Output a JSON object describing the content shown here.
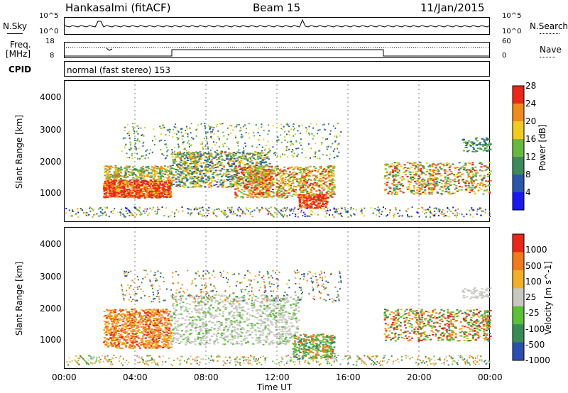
{
  "header": {
    "title": "Hankasalmi (fitACF)",
    "beam": "Beam 15",
    "date": "11/Jan/2015"
  },
  "noise_panel": {
    "left_label": "N.Sky",
    "right_label": "N.Search",
    "tick_top": "10^5",
    "tick_bottom": "10^0"
  },
  "freq_panel": {
    "left_label_1": "Freq.",
    "left_label_2": "[MHz]",
    "left_tick_top": "18",
    "left_tick_bottom": "8",
    "right_label": "Nave",
    "right_tick_top": "60",
    "right_tick_bottom": "0"
  },
  "cpid_panel": {
    "label": "CPID",
    "text": "normal (fast stereo) 153"
  },
  "chart_data": [
    {
      "type": "heatmap",
      "ylabel": "Slant Range [km]",
      "yticks": [
        "1000",
        "2000",
        "3000",
        "4000"
      ],
      "ylim": [
        200,
        4600
      ],
      "xlim_hours": [
        0,
        24
      ],
      "colorbar_label": "Power [dB]",
      "colorbar_ticks": [
        "4",
        "8",
        "12",
        "16",
        "20",
        "24",
        "28"
      ],
      "colorbar_colors": [
        "#1a1aee",
        "#2a57a8",
        "#3f8a5a",
        "#6ab844",
        "#f0cc22",
        "#f08a1c",
        "#e8281a"
      ]
    },
    {
      "type": "heatmap",
      "ylabel": "Slant Range [km]",
      "yticks": [
        "1000",
        "2000",
        "3000",
        "4000"
      ],
      "ylim": [
        200,
        4600
      ],
      "xlim_hours": [
        0,
        24
      ],
      "colorbar_label": "Velocity [m s^-1]",
      "colorbar_ticks": [
        "1000",
        "500",
        "100",
        "25",
        "-25",
        "-100",
        "-500",
        "-1000"
      ],
      "colorbar_colors": [
        "#2a4fb0",
        "#3a8a58",
        "#5cbf3a",
        "#c8c8c0",
        "#f0b02a",
        "#f07a1c",
        "#e8281a"
      ]
    }
  ],
  "xaxis": {
    "label": "Time UT",
    "ticks": [
      "00:00",
      "04:00",
      "08:00",
      "12:00",
      "16:00",
      "20:00",
      "00:00"
    ]
  }
}
